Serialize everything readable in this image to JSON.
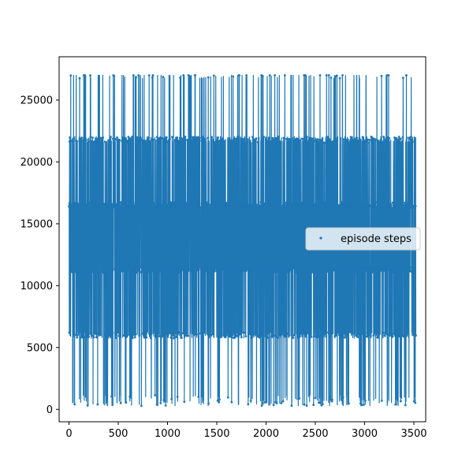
{
  "chart_data": {
    "type": "line",
    "title": "",
    "xlabel": "",
    "ylabel": "",
    "xlim": [
      -100,
      3620
    ],
    "ylim": [
      -1000,
      28500
    ],
    "xticks": [
      0,
      500,
      1000,
      1500,
      2000,
      2500,
      3000,
      3500
    ],
    "yticks": [
      0,
      5000,
      10000,
      15000,
      20000,
      25000
    ],
    "xtick_labels": [
      "0",
      "500",
      "1000",
      "1500",
      "2000",
      "2500",
      "3000",
      "3500"
    ],
    "ytick_labels": [
      "0",
      "5000",
      "10000",
      "15000",
      "20000",
      "25000"
    ],
    "grid": false,
    "legend_position": "center-right",
    "colors": {
      "series": "#1f77b4"
    },
    "series": [
      {
        "name": "episode steps",
        "n_points": 3520,
        "level_values": [
          500,
          900,
          6000,
          11300,
          16500,
          21800,
          27000
        ],
        "level_weights": [
          0.03,
          0.02,
          0.17,
          0.27,
          0.28,
          0.19,
          0.04
        ],
        "x_range": [
          0,
          3520
        ],
        "y_range": [
          300,
          27000
        ]
      }
    ]
  }
}
